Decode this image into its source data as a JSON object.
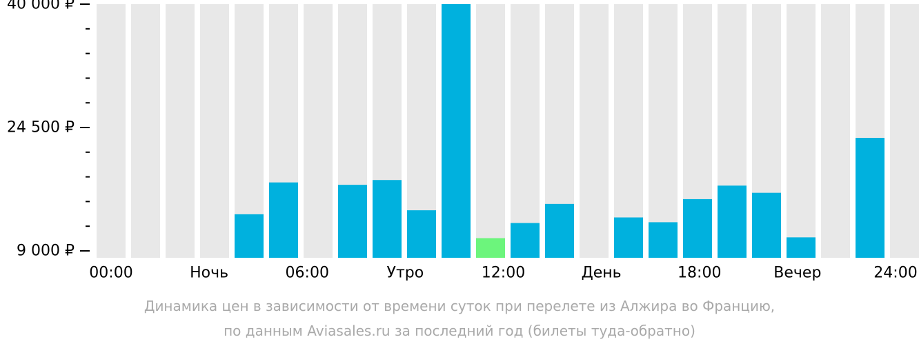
{
  "chart_data": {
    "type": "bar",
    "x_ticks": [
      "00:00",
      "Ночь",
      "06:00",
      "Утро",
      "12:00",
      "День",
      "18:00",
      "Вечер",
      "24:00"
    ],
    "y_tick_labels": [
      "40 000 ₽",
      "24 500 ₽",
      "9 000 ₽"
    ],
    "y_tick_values": [
      40000,
      24500,
      9000
    ],
    "ylim": [
      8000,
      40000
    ],
    "y_minor_tick_count_between_majors": 4,
    "hours": [
      0,
      1,
      2,
      3,
      4,
      5,
      6,
      7,
      8,
      9,
      10,
      11,
      12,
      13,
      14,
      15,
      16,
      17,
      18,
      19,
      20,
      21,
      22,
      23
    ],
    "values": [
      null,
      null,
      null,
      null,
      13600,
      17600,
      null,
      17300,
      17900,
      14100,
      40000,
      10600,
      12500,
      14900,
      null,
      13200,
      12600,
      15500,
      17200,
      16300,
      10700,
      null,
      23200,
      null
    ],
    "highlight_index": 11,
    "colors": {
      "bar": "#00b1de",
      "highlight": "#6cf57c",
      "background_column": "#e8e8e8",
      "axis": "#000000",
      "text": "#000000",
      "caption": "#a9a9a9"
    }
  },
  "caption": {
    "line1": "Динамика цен в зависимости от времени суток при перелете из Алжира во Францию,",
    "line2": "по данным Aviasales.ru за последний год (билеты туда-обратно)"
  }
}
